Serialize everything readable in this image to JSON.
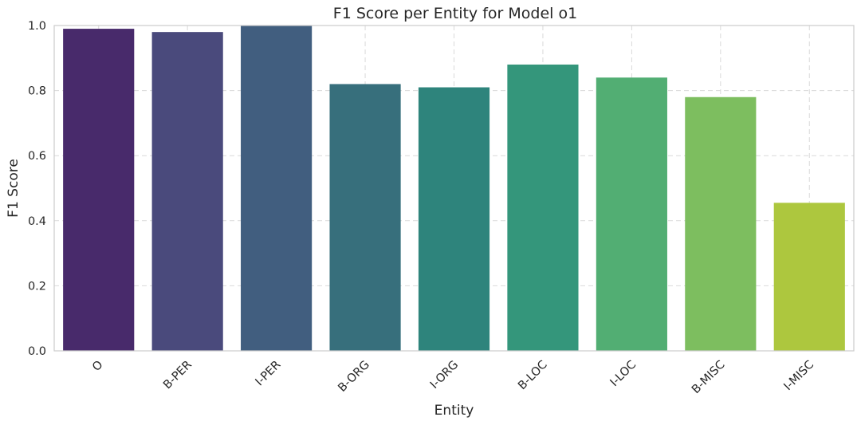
{
  "chart_data": {
    "type": "bar",
    "title": "F1 Score per Entity for Model o1",
    "xlabel": "Entity",
    "ylabel": "F1 Score",
    "categories": [
      "O",
      "B-PER",
      "I-PER",
      "B-ORG",
      "I-ORG",
      "B-LOC",
      "I-LOC",
      "B-MISC",
      "I-MISC"
    ],
    "values": [
      0.99,
      0.98,
      1.0,
      0.82,
      0.81,
      0.88,
      0.84,
      0.78,
      0.455
    ],
    "colors": [
      "#482a6b",
      "#4a4a7c",
      "#415e7f",
      "#376f7c",
      "#2e847c",
      "#34967b",
      "#52ae73",
      "#7dbe5f",
      "#adc73e"
    ],
    "ylim": [
      0,
      1.0
    ],
    "yticks": [
      "0.0",
      "0.2",
      "0.4",
      "0.6",
      "0.8",
      "1.0"
    ],
    "grid": true,
    "legend": "none"
  }
}
